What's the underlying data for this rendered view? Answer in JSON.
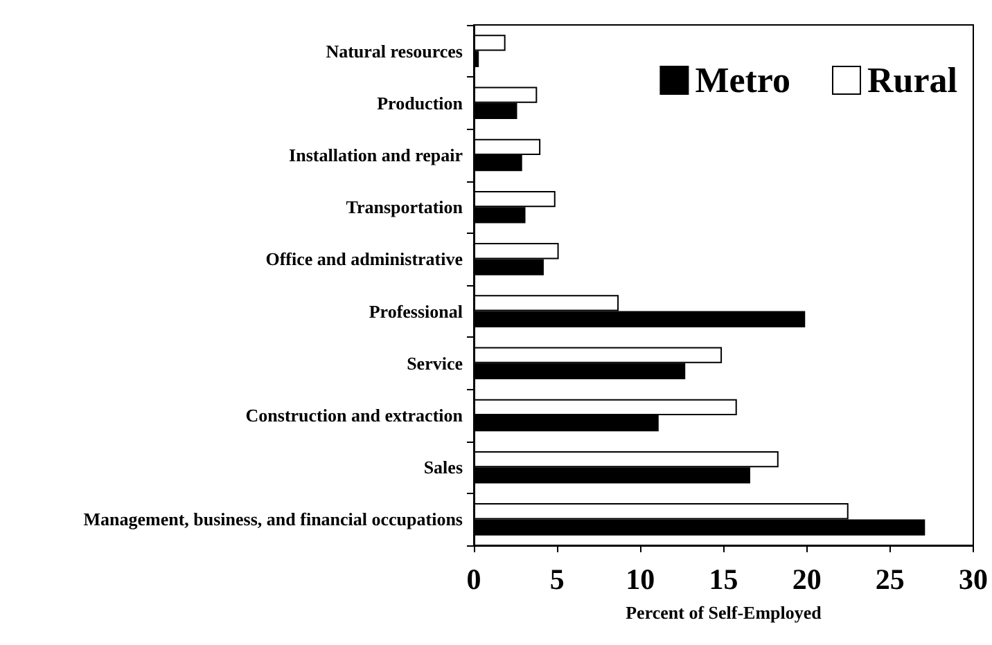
{
  "chart_data": {
    "type": "bar",
    "orientation": "horizontal",
    "xlabel": "Percent of Self-Employed",
    "categories": [
      "Natural resources",
      "Production",
      "Installation and repair",
      "Transportation",
      "Office and administrative",
      "Professional",
      "Service",
      "Construction and extraction",
      "Sales",
      "Management, business, and financial occupations"
    ],
    "series": [
      {
        "name": "Metro",
        "color": "#000000",
        "values": [
          0.3,
          2.6,
          2.9,
          3.1,
          4.2,
          19.9,
          12.7,
          11.1,
          16.6,
          27.1
        ]
      },
      {
        "name": "Rural",
        "color": "#ffffff",
        "values": [
          1.9,
          3.8,
          4.0,
          4.9,
          5.1,
          8.7,
          14.9,
          15.8,
          18.3,
          22.5
        ]
      }
    ],
    "xlim": [
      0,
      30
    ],
    "xticks": [
      0,
      5,
      10,
      15,
      20,
      25,
      30
    ],
    "grid": false,
    "legend": "top right"
  }
}
